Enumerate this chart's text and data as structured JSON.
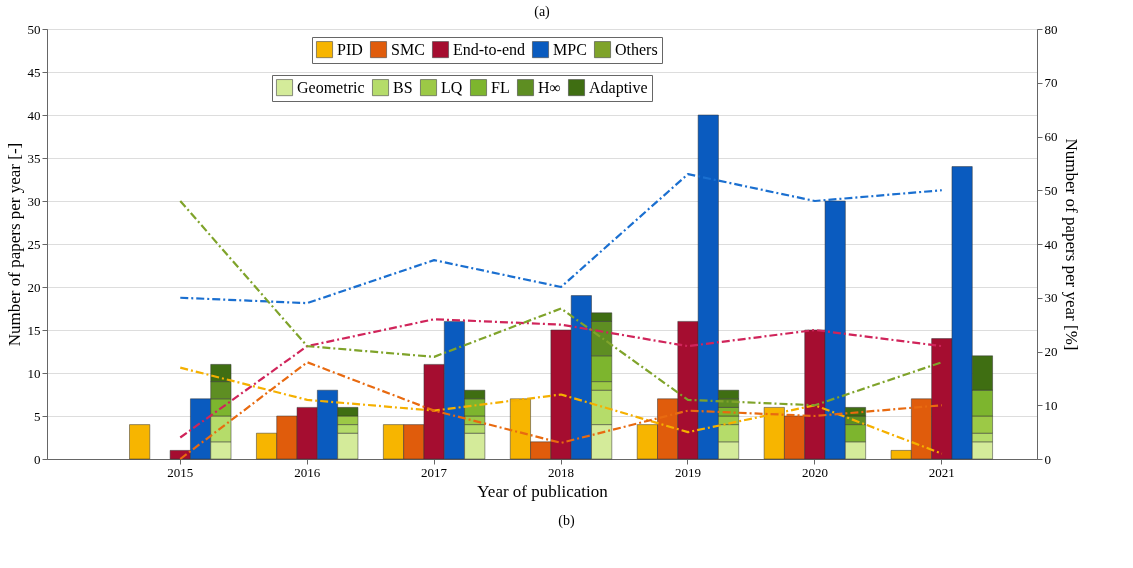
{
  "chart_data": {
    "type": "bar",
    "title": "(a)",
    "annotations": [
      "(b)"
    ],
    "xlabel": "Year of publication",
    "ylabel": "Number of papers per year [-]",
    "y2label": "Number of papers per year [%]",
    "categories": [
      "2015",
      "2016",
      "2017",
      "2018",
      "2019",
      "2020",
      "2021"
    ],
    "ylim": [
      0,
      50
    ],
    "yticks": [
      0,
      5,
      10,
      15,
      20,
      25,
      30,
      35,
      40,
      45,
      50
    ],
    "y2lim": [
      0,
      80
    ],
    "y2ticks": [
      0,
      10,
      20,
      30,
      40,
      50,
      60,
      70,
      80
    ],
    "grid": "y",
    "legend": "top",
    "line_style": "dashed",
    "series": [
      {
        "name": "PID",
        "color": "#f7b500",
        "values": [
          4,
          3,
          4,
          7,
          4,
          6,
          1
        ]
      },
      {
        "name": "SMC",
        "color": "#e05c0c",
        "values": [
          0,
          5,
          4,
          2,
          7,
          5,
          7
        ]
      },
      {
        "name": "End-to-end",
        "color": "#a50d30",
        "values": [
          1,
          6,
          11,
          15,
          16,
          15,
          14
        ]
      },
      {
        "name": "MPC",
        "color": "#0a5bbf",
        "values": [
          7,
          8,
          16,
          19,
          40,
          30,
          34
        ]
      },
      {
        "name": "Geometric",
        "color": "#d4eb9a",
        "base": [
          0,
          0,
          0,
          0,
          0,
          0,
          0
        ],
        "values": [
          2,
          3,
          3,
          4,
          2,
          2,
          2
        ]
      },
      {
        "name": "BS",
        "color": "#b5dc6a",
        "base": [
          2,
          3,
          3,
          4,
          2,
          null,
          2
        ],
        "values": [
          3,
          1,
          1,
          4,
          2,
          null,
          1
        ]
      },
      {
        "name": "LQ",
        "color": "#9cc946",
        "base": [
          null,
          4,
          4,
          8,
          4,
          null,
          3
        ],
        "values": [
          null,
          1,
          1,
          1,
          1,
          null,
          2
        ]
      },
      {
        "name": "FL",
        "color": "#7db52e",
        "base": [
          5,
          null,
          5,
          9,
          5,
          2,
          5
        ],
        "values": [
          2,
          null,
          2,
          3,
          1,
          2,
          3
        ]
      },
      {
        "name": "H∞",
        "color": "#5e8e22",
        "base": [
          7,
          null,
          null,
          12,
          6,
          4,
          null
        ],
        "values": [
          2,
          null,
          null,
          4,
          1,
          1,
          null
        ]
      },
      {
        "name": "Adaptive",
        "color": "#3f6e12",
        "base": [
          9,
          5,
          7,
          16,
          7,
          5,
          8
        ],
        "values": [
          2,
          1,
          1,
          1,
          1,
          1,
          4
        ]
      },
      {
        "type": "line",
        "axis": "y2",
        "color": "#f5b000",
        "values": [
          17,
          11,
          9,
          12,
          5,
          10,
          1
        ]
      },
      {
        "type": "line",
        "axis": "y2",
        "color": "#e86a10",
        "values": [
          0,
          18,
          9,
          3,
          9,
          8,
          10
        ]
      },
      {
        "type": "line",
        "axis": "y2",
        "color": "#d0245a",
        "values": [
          4,
          21,
          26,
          25,
          21,
          24,
          21
        ]
      },
      {
        "type": "line",
        "axis": "y2",
        "color": "#1a6fd0",
        "values": [
          30,
          29,
          37,
          32,
          53,
          48,
          50
        ]
      },
      {
        "name": "Others",
        "type": "line",
        "axis": "y2",
        "color": "#7fa32a",
        "values": [
          48,
          21,
          19,
          28,
          11,
          10,
          18
        ]
      }
    ]
  }
}
